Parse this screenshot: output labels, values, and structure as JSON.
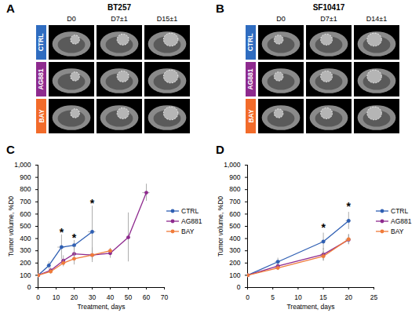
{
  "panels": [
    {
      "label": "A",
      "title": "BT257",
      "columns": [
        "D0",
        "D7±1",
        "D15±1"
      ],
      "rows": [
        {
          "name": "CTRL",
          "color": "#2f6cc0"
        },
        {
          "name": "AG881",
          "color": "#8e2a8e"
        },
        {
          "name": "BAY",
          "color": "#f26b2a"
        }
      ]
    },
    {
      "label": "B",
      "title": "SF10417",
      "columns": [
        "D0",
        "D7±1",
        "D14±1"
      ],
      "rows": [
        {
          "name": "CTRL",
          "color": "#2f6cc0"
        },
        {
          "name": "AG881",
          "color": "#8e2a8e"
        },
        {
          "name": "BAY",
          "color": "#f26b2a"
        }
      ]
    }
  ],
  "chart_data": [
    {
      "panel": "C",
      "type": "line",
      "x_label": "Treatment, days",
      "y_label": "Tumor volume, %D0",
      "xlim": [
        0,
        70
      ],
      "xticks": [
        0,
        10,
        20,
        30,
        40,
        50,
        60,
        70
      ],
      "ylim": [
        0,
        1000
      ],
      "yticks": [
        0,
        100,
        200,
        300,
        400,
        500,
        600,
        700,
        800,
        900,
        1000
      ],
      "marker": "circle",
      "legend": "right",
      "series": [
        {
          "name": "CTRL",
          "color": "#2f5fb3",
          "x": [
            0,
            6,
            13,
            20,
            30
          ],
          "values": [
            100,
            180,
            330,
            345,
            455
          ],
          "yerr": [
            0,
            30,
            100,
            40,
            210
          ],
          "xerr": [
            0,
            1,
            2,
            1,
            2
          ]
        },
        {
          "name": "AG881",
          "color": "#8e2a8e",
          "x": [
            0,
            7,
            14,
            20,
            30,
            40,
            50,
            60
          ],
          "values": [
            100,
            140,
            220,
            275,
            265,
            280,
            410,
            775
          ],
          "yerr": [
            0,
            20,
            40,
            60,
            60,
            40,
            200,
            70
          ],
          "xerr": [
            0,
            1,
            1,
            1,
            2,
            1,
            1,
            2
          ]
        },
        {
          "name": "BAY",
          "color": "#f07b3a",
          "x": [
            0,
            7,
            14,
            20,
            30,
            40
          ],
          "values": [
            100,
            130,
            200,
            235,
            265,
            300
          ],
          "yerr": [
            0,
            20,
            30,
            50,
            40,
            20
          ],
          "xerr": [
            0,
            1,
            1,
            1,
            1,
            1
          ]
        }
      ],
      "annotations": [
        {
          "x": 13,
          "y": 450,
          "text": "*"
        },
        {
          "x": 20,
          "y": 405,
          "text": "*"
        },
        {
          "x": 30,
          "y": 685,
          "text": "*"
        }
      ]
    },
    {
      "panel": "D",
      "type": "line",
      "x_label": "Treatment, days",
      "y_label": "Tumor volume, %D0",
      "xlim": [
        0,
        25
      ],
      "xticks": [
        0,
        5,
        10,
        15,
        20,
        25
      ],
      "ylim": [
        0,
        1000
      ],
      "yticks": [
        0,
        100,
        200,
        300,
        400,
        500,
        600,
        700,
        800,
        900,
        1000
      ],
      "marker": "circle",
      "legend": "right",
      "series": [
        {
          "name": "CTRL",
          "color": "#2f5fb3",
          "x": [
            0,
            6,
            15,
            20
          ],
          "values": [
            100,
            210,
            375,
            545
          ],
          "yerr": [
            0,
            30,
            70,
            70
          ],
          "xerr": [
            0,
            0.5,
            0.5,
            0.5
          ]
        },
        {
          "name": "AG881",
          "color": "#8e2a8e",
          "x": [
            0,
            6,
            15,
            20
          ],
          "values": [
            100,
            175,
            270,
            390
          ],
          "yerr": [
            0,
            20,
            50,
            40
          ],
          "xerr": [
            0,
            0.5,
            0.5,
            0.5
          ]
        },
        {
          "name": "BAY",
          "color": "#f07b3a",
          "x": [
            0,
            6,
            15,
            20
          ],
          "values": [
            100,
            160,
            255,
            395
          ],
          "yerr": [
            0,
            20,
            40,
            40
          ],
          "xerr": [
            0,
            0.5,
            0.5,
            0.5
          ]
        }
      ],
      "annotations": [
        {
          "x": 15,
          "y": 490,
          "text": "*"
        },
        {
          "x": 20,
          "y": 660,
          "text": "*"
        }
      ]
    }
  ]
}
